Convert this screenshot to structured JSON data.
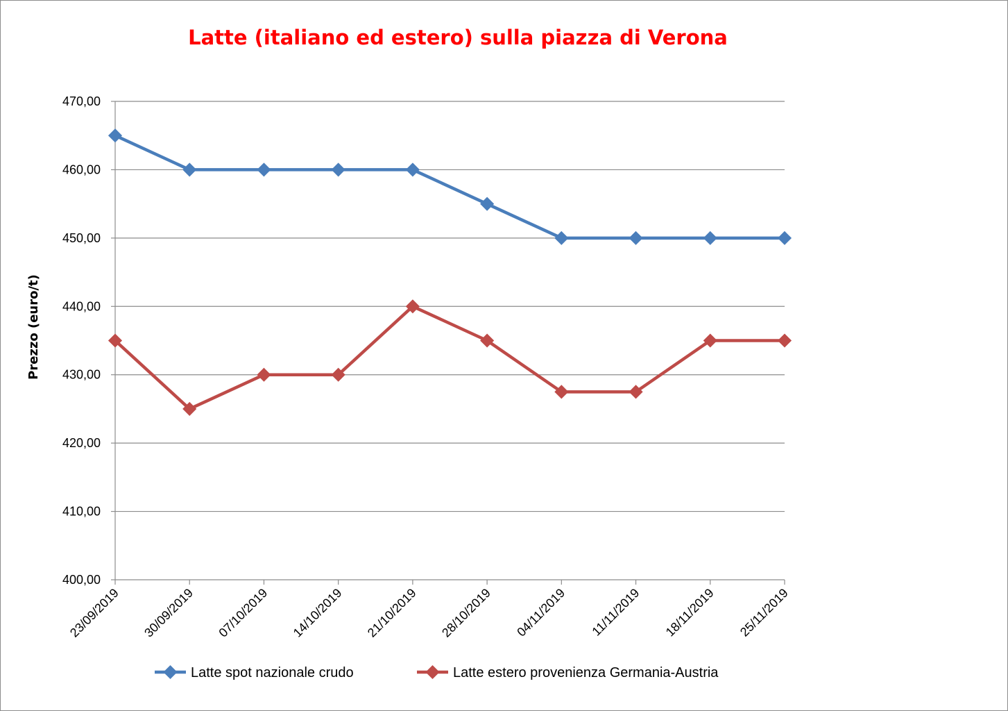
{
  "chart_data": {
    "type": "line",
    "title": "Latte (italiano ed estero) sulla piazza di Verona",
    "xlabel": "",
    "ylabel": "Prezzo (euro/t)",
    "categories": [
      "23/09/2019",
      "30/09/2019",
      "07/10/2019",
      "14/10/2019",
      "21/10/2019",
      "28/10/2019",
      "04/11/2019",
      "11/11/2019",
      "18/11/2019",
      "25/11/2019"
    ],
    "ylim": [
      400,
      470
    ],
    "yticks": [
      "400,00",
      "410,00",
      "420,00",
      "430,00",
      "440,00",
      "450,00",
      "460,00",
      "470,00"
    ],
    "grid": true,
    "legend_position": "bottom",
    "series": [
      {
        "name": "Latte spot nazionale crudo",
        "color": "#4a7ebb",
        "marker": "diamond",
        "values": [
          465,
          460,
          460,
          460,
          460,
          455,
          450,
          450,
          450,
          450
        ]
      },
      {
        "name": "Latte estero provenienza Germania-Austria",
        "color": "#be4b48",
        "marker": "diamond",
        "values": [
          435,
          425,
          430,
          430,
          440,
          435,
          427.5,
          427.5,
          435,
          435
        ]
      }
    ]
  }
}
